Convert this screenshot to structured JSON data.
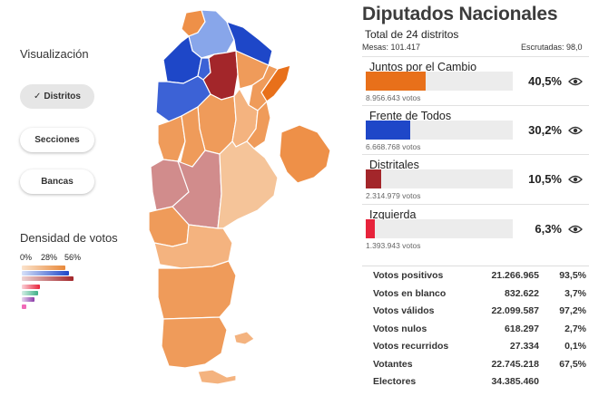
{
  "left_panel": {
    "visualization_label": "Visualización",
    "buttons": {
      "distritos": "Distritos",
      "secciones": "Secciones",
      "bancas": "Bancas"
    },
    "active_view": "Distritos",
    "density_label": "Densidad de votos",
    "density_scale": [
      "0%",
      "28%",
      "56%"
    ],
    "density_colors": [
      "#e8893a",
      "#1e47c8",
      "#a3262a",
      "#e7233b",
      "#3fb088",
      "#8a3aa8",
      "#f06ab8"
    ]
  },
  "header": {
    "title": "Diputados Nacionales",
    "subtitle": "Total de 24 distritos",
    "mesas": "Mesas: 101.417",
    "escrutadas": "Escrutadas: 98,0"
  },
  "parties": [
    {
      "name": "Juntos por el Cambio",
      "votes": "8.956.643 votos",
      "pct": "40,5%",
      "share": 0.405,
      "color": "#e8701a"
    },
    {
      "name": "Frente de Todos",
      "votes": "6.668.768 votos",
      "pct": "30,2%",
      "share": 0.302,
      "color": "#1e47c8"
    },
    {
      "name": "Distritales",
      "votes": "2.314.979 votos",
      "pct": "10,5%",
      "share": 0.105,
      "color": "#a3262a"
    },
    {
      "name": "Izquierda",
      "votes": "1.393.943 votos",
      "pct": "6,3%",
      "share": 0.063,
      "color": "#e7233b"
    }
  ],
  "totals": [
    {
      "label": "Votos positivos",
      "value": "21.266.965",
      "pct": "93,5%"
    },
    {
      "label": "Votos en blanco",
      "value": "832.622",
      "pct": "3,7%"
    },
    {
      "label": "Votos válidos",
      "value": "22.099.587",
      "pct": "97,2%"
    },
    {
      "label": "Votos nulos",
      "value": "618.297",
      "pct": "2,7%"
    },
    {
      "label": "Votos recurridos",
      "value": "27.334",
      "pct": "0,1%"
    },
    {
      "label": "Votantes",
      "value": "22.745.218",
      "pct": "67,5%"
    },
    {
      "label": "Electores",
      "value": "34.385.460",
      "pct": ""
    }
  ],
  "map_colors": {
    "dark_orange": "#e8701a",
    "orange": "#ee9048",
    "medium_orange": "#ef9b5a",
    "light_orange": "#f4b37f",
    "pale_orange": "#f5c499",
    "blue": "#1e47c8",
    "medium_blue": "#3c62d6",
    "light_blue": "#88a6ea",
    "red": "#a3262a",
    "pink": "#d18c8c"
  }
}
